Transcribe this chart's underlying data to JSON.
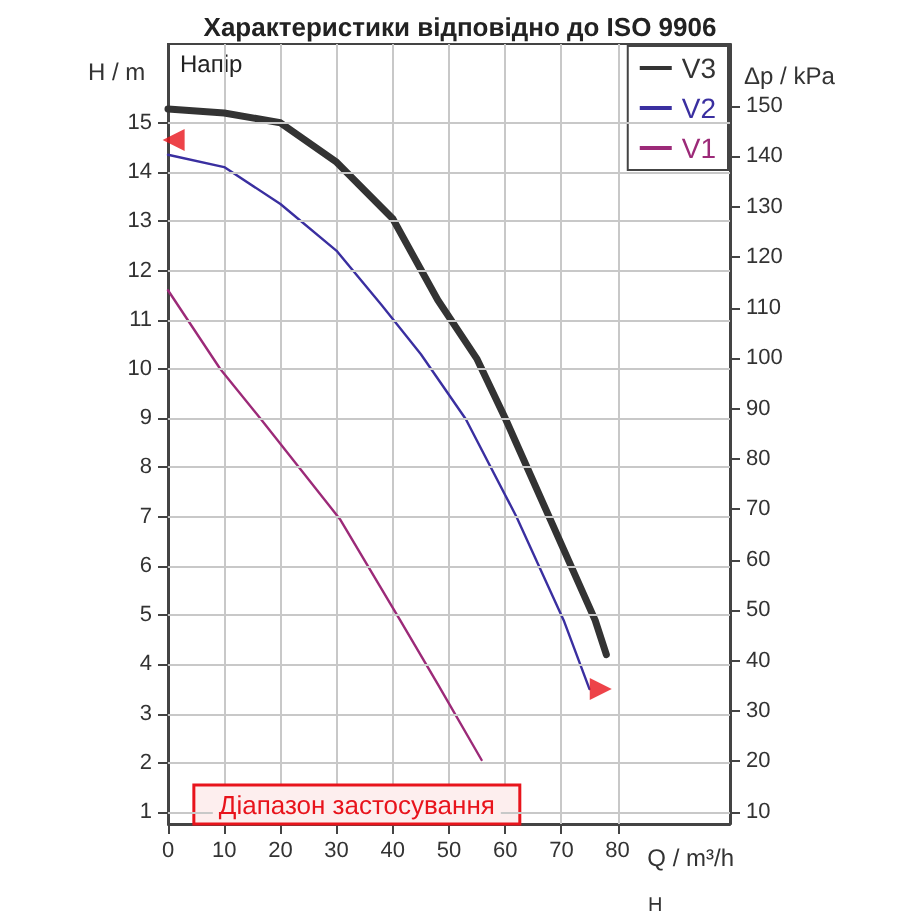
{
  "chart_data": {
    "type": "line",
    "title": "Характеристики відповідно до ISO 9906",
    "xlabel": "Q / m³/h",
    "ylabel": "H / m",
    "y2label": "Δp / kPa",
    "xlim": [
      0,
      100
    ],
    "xticks": [
      0,
      10,
      20,
      30,
      40,
      50,
      60,
      70,
      80
    ],
    "ylim": [
      0.76,
      16.6
    ],
    "yticks": [
      1,
      2,
      3,
      4,
      5,
      6,
      7,
      8,
      9,
      10,
      11,
      12,
      13,
      14,
      15
    ],
    "y2lim": [
      7.6,
      162.3
    ],
    "y2ticks": [
      10,
      20,
      30,
      40,
      50,
      60,
      70,
      80,
      90,
      100,
      110,
      120,
      130,
      140,
      150
    ],
    "grid": true,
    "legend": "top right",
    "marker": "none",
    "line_style": "solid",
    "series": [
      {
        "name": "V3",
        "color": "#333333",
        "x": [
          0,
          10,
          20,
          30,
          40,
          48,
          55,
          60,
          68,
          76,
          78
        ],
        "values": [
          15.28,
          15.2,
          15.0,
          14.2,
          13.05,
          11.4,
          10.2,
          9.0,
          6.95,
          4.9,
          4.2
        ]
      },
      {
        "name": "V2",
        "color": "#3a2fa0",
        "x": [
          0,
          10,
          20,
          30,
          38,
          45,
          53,
          62,
          70.4,
          75
        ],
        "values": [
          14.35,
          14.1,
          13.35,
          12.4,
          11.3,
          10.3,
          8.98,
          7.0,
          4.9,
          3.5
        ]
      },
      {
        "name": "V1",
        "color": "#9c2a78",
        "x": [
          0,
          9.3,
          16.4,
          30.6,
          41.3,
          48,
          55.8
        ],
        "values": [
          11.6,
          10.0,
          9.0,
          6.95,
          4.9,
          3.6,
          2.06
        ]
      },
      {
        "type": "scatter",
        "color": "#e8141c",
        "marker": "triangle",
        "x": [
          1,
          77
        ],
        "values": [
          14.65,
          3.5
        ]
      }
    ],
    "bands": [
      {
        "axis": "x",
        "from": 4.6,
        "to": 62.6,
        "label": "Діапазон застосування",
        "color": "#e8141c"
      }
    ],
    "annotations": [
      "Напір",
      "H"
    ]
  }
}
